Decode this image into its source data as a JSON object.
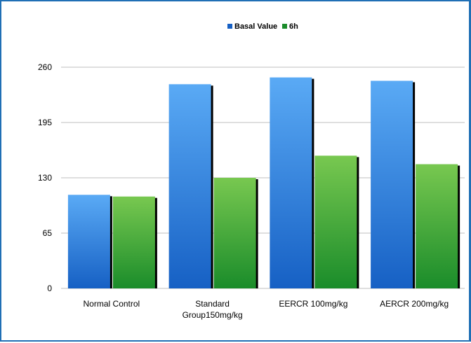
{
  "chart_data": {
    "type": "bar",
    "title": "",
    "xlabel": "",
    "ylabel": "",
    "categories": [
      [
        "Normal Control"
      ],
      [
        "Standard",
        "Group150mg/kg"
      ],
      [
        "EERCR 100mg/kg"
      ],
      [
        "AERCR 200mg/kg"
      ]
    ],
    "series": [
      {
        "name": "Basal Value",
        "values": [
          110,
          240,
          248,
          244
        ]
      },
      {
        "name": "6h",
        "values": [
          108,
          130,
          156,
          146
        ]
      }
    ],
    "yticks": [
      "0",
      "65",
      "130",
      "195",
      "260"
    ],
    "ylim": [
      0,
      260
    ],
    "grid": true,
    "legend": "top-center",
    "colors": {
      "basal_top": "#5aaaf5",
      "basal_bottom": "#1660c4",
      "sixh_top": "#78c850",
      "sixh_bottom": "#1a8c2a",
      "frame": "#1f6fb5",
      "grid": "#bfbfbf"
    }
  }
}
